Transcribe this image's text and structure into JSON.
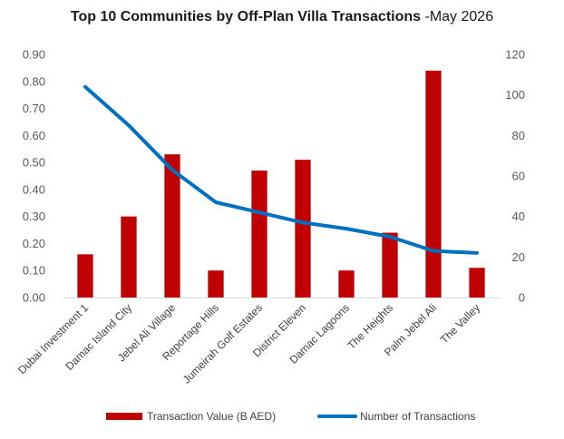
{
  "chart_data": {
    "type": "bar",
    "title": "Top 10 Communities by Off-Plan Villa Transactions",
    "title_suffix": "-May 2026",
    "categories": [
      "Dubai Investment 1",
      "Damac Island City",
      "Jebel Ali Village",
      "Reportage Hills",
      "Jumeirah Golf Estates",
      "District Eleven",
      "Damac Lagoons",
      "The Heights",
      "Palm Jebel Ali",
      "The Valley"
    ],
    "series": [
      {
        "name": "Transaction Value (B AED)",
        "type": "bar",
        "axis": "left",
        "color": "#C00000",
        "values": [
          0.16,
          0.3,
          0.53,
          0.1,
          0.47,
          0.51,
          0.1,
          0.24,
          0.84,
          0.11
        ]
      },
      {
        "name": "Number of Transactions",
        "type": "line",
        "axis": "right",
        "color": "#0070C0",
        "values": [
          104,
          85,
          63,
          47,
          42,
          37,
          34,
          30,
          23,
          22
        ]
      }
    ],
    "y_left": {
      "min": 0,
      "max": 0.9,
      "step": 0.1,
      "ticks": [
        "0.00",
        "0.10",
        "0.20",
        "0.30",
        "0.40",
        "0.50",
        "0.60",
        "0.70",
        "0.80",
        "0.90"
      ]
    },
    "y_right": {
      "min": 0,
      "max": 120,
      "step": 20,
      "ticks": [
        "0",
        "20",
        "40",
        "60",
        "80",
        "100",
        "120"
      ]
    },
    "grid": false,
    "legend_position": "bottom"
  }
}
